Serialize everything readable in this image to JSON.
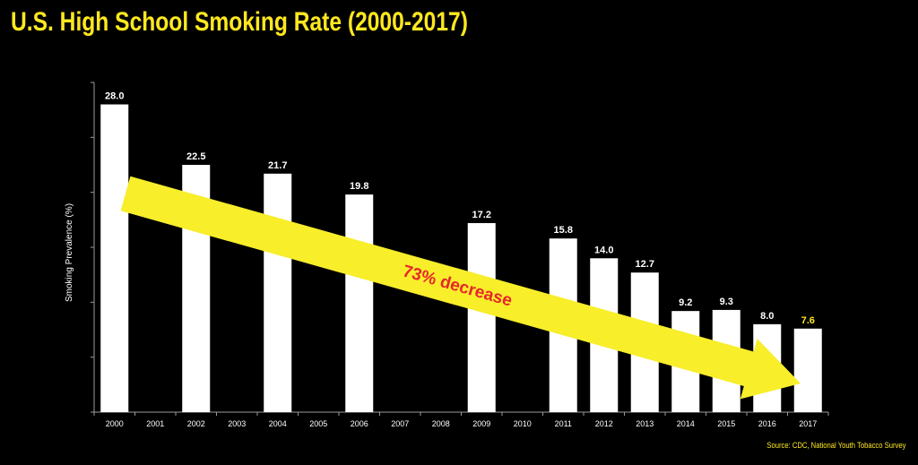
{
  "title": "U.S. High School Smoking Rate (2000-2017)",
  "source": "Source:  CDC, National Youth Tobacco Survey",
  "colors": {
    "background": "#000000",
    "title": "#ffe81f",
    "bar": "#ffffff",
    "label": "#ffffff",
    "highlight_label": "#ffe81f",
    "arrow": "#f8ee2a",
    "arrow_text": "#e8262b"
  },
  "chart_data": {
    "type": "bar",
    "ylabel": "Smoking Prevalence (%)",
    "xlabel": "",
    "ylim": [
      0,
      30
    ],
    "grid": false,
    "categories": [
      "2000",
      "2001",
      "2002",
      "2003",
      "2004",
      "2005",
      "2006",
      "2007",
      "2008",
      "2009",
      "2010",
      "2011",
      "2012",
      "2013",
      "2014",
      "2015",
      "2016",
      "2017"
    ],
    "values": [
      28.0,
      null,
      22.5,
      null,
      21.7,
      null,
      19.8,
      null,
      null,
      17.2,
      null,
      15.8,
      14.0,
      12.7,
      9.2,
      9.3,
      8.0,
      7.6
    ],
    "data_labels": [
      "28.0",
      "",
      "22.5",
      "",
      "21.7",
      "",
      "19.8",
      "",
      "",
      "17.2",
      "",
      "15.8",
      "14.0",
      "12.7",
      "9.2",
      "9.3",
      "8.0",
      "7.6"
    ],
    "highlight_category": "2017",
    "annotation": {
      "text": "73% decrease",
      "from_category": "2000",
      "to_category": "2017"
    }
  }
}
